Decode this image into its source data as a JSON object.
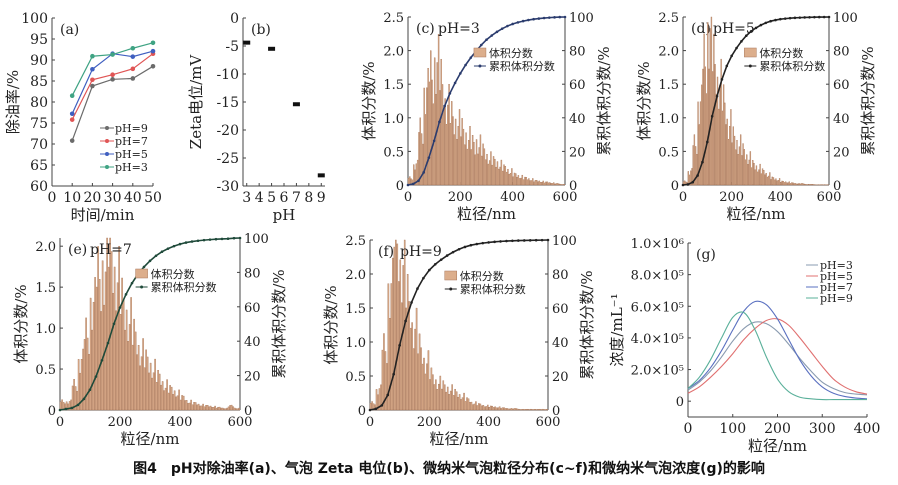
{
  "caption": "图4　pH对除油率(a)、气泡 Zeta 电位(b)、微纳米气泡粒径分布(c~f)和微纳米气泡浓度(g)的影响",
  "chart_data": [
    {
      "id": "a",
      "type": "line",
      "panel_label": "(a)",
      "xlabel": "时间/min",
      "ylabel": "除油率/%",
      "x": [
        10,
        20,
        30,
        40,
        50
      ],
      "xlim": [
        0,
        50
      ],
      "xticks": [
        0,
        10,
        20,
        30,
        40,
        50
      ],
      "ylim": [
        60,
        100
      ],
      "yticks": [
        60,
        65,
        70,
        75,
        80,
        85,
        90,
        95,
        100
      ],
      "legend_position": "center-right",
      "series": [
        {
          "name": "pH=9",
          "color": "#6b6b6b",
          "values": [
            70.8,
            83.8,
            85.4,
            85.6,
            88.5
          ]
        },
        {
          "name": "pH=7",
          "color": "#e05555",
          "values": [
            75.8,
            85.3,
            86.5,
            87.9,
            91.5
          ]
        },
        {
          "name": "pH=5",
          "color": "#3f5fc0",
          "values": [
            77.2,
            87.8,
            91.5,
            90.8,
            92.1
          ]
        },
        {
          "name": "pH=3",
          "color": "#3fa383",
          "values": [
            81.5,
            90.9,
            91.3,
            92.8,
            94.1
          ]
        }
      ]
    },
    {
      "id": "b",
      "type": "scatter",
      "panel_label": "(b)",
      "xlabel": "pH",
      "ylabel": "Zeta电位/mV",
      "x": [
        3,
        5,
        7,
        9
      ],
      "values": [
        -4.4,
        -5.5,
        -15.4,
        -28.1
      ],
      "xlim": [
        2.7,
        9.3
      ],
      "xticks": [
        3,
        4,
        5,
        6,
        7,
        8,
        9
      ],
      "ylim": [
        -30,
        0
      ],
      "yticks": [
        0,
        -5,
        -10,
        -15,
        -20,
        -25,
        -30
      ]
    },
    {
      "id": "c",
      "type": "bar",
      "panel_label": "(c)",
      "title": "pH=3",
      "xlabel": "粒径/nm",
      "ylabel": "体积分数/%",
      "y2label": "累积体积分数/%",
      "bin_width": 20,
      "xlim": [
        0,
        600
      ],
      "xticks": [
        0,
        200,
        400,
        600
      ],
      "ylim": [
        0,
        2.5
      ],
      "yticks": [
        0,
        0.5,
        1.0,
        1.5,
        2.0,
        2.5
      ],
      "y2lim": [
        0,
        100
      ],
      "y2ticks": [
        0,
        20,
        40,
        60,
        80,
        100
      ],
      "legend": [
        "体积分数",
        "累积体积分数"
      ],
      "cum_color": "#2b3c6e",
      "values": [
        0.1,
        0.3,
        0.8,
        1.4,
        1.6,
        1.8,
        1.5,
        1.2,
        1.0,
        0.9,
        0.8,
        0.7,
        0.6,
        0.6,
        0.5,
        0.4,
        0.35,
        0.3,
        0.25,
        0.2,
        0.15,
        0.12,
        0.1,
        0.08,
        0.06,
        0.05,
        0.04,
        0.03,
        0.02,
        0.01
      ]
    },
    {
      "id": "d",
      "type": "bar",
      "panel_label": "(d)",
      "title": "pH=5",
      "xlabel": "粒径/nm",
      "ylabel": "体积分数/%",
      "y2label": "累积体积分数/%",
      "bin_width": 20,
      "xlim": [
        0,
        600
      ],
      "xticks": [
        0,
        200,
        400,
        600
      ],
      "ylim": [
        0,
        2.5
      ],
      "yticks": [
        0,
        0.5,
        1.0,
        1.5,
        2.0,
        2.5
      ],
      "y2lim": [
        0,
        100
      ],
      "y2ticks": [
        0,
        20,
        40,
        60,
        80,
        100
      ],
      "legend": [
        "体积分数",
        "累积体积分数"
      ],
      "cum_color": "#222222",
      "values": [
        0.05,
        0.2,
        0.6,
        1.2,
        1.8,
        2.3,
        1.8,
        1.5,
        1.2,
        0.9,
        0.7,
        0.6,
        0.5,
        0.4,
        0.3,
        0.25,
        0.2,
        0.15,
        0.1,
        0.08,
        0.05,
        0.04,
        0.03,
        0.02,
        0.02,
        0.01,
        0.01,
        0.005,
        0.005,
        0.005
      ]
    },
    {
      "id": "e",
      "type": "bar",
      "panel_label": "(e)",
      "title": "pH=7",
      "xlabel": "粒径/nm",
      "ylabel": "体积分数/%",
      "y2label": "累积体积分数/%",
      "bin_width": 20,
      "xlim": [
        0,
        600
      ],
      "xticks": [
        0,
        200,
        400,
        600
      ],
      "ylim": [
        0,
        2.1
      ],
      "yticks": [
        0,
        0.5,
        1.0,
        1.5,
        2.0
      ],
      "y2lim": [
        0,
        100
      ],
      "y2ticks": [
        0,
        20,
        40,
        60,
        80,
        100
      ],
      "legend": [
        "体积分数",
        "累积体积分数"
      ],
      "cum_color": "#1f4a3a",
      "values": [
        0.1,
        0.1,
        0.3,
        0.6,
        0.9,
        1.3,
        1.6,
        1.7,
        1.9,
        1.6,
        1.3,
        1.1,
        0.9,
        0.7,
        0.6,
        0.5,
        0.4,
        0.3,
        0.25,
        0.2,
        0.15,
        0.1,
        0.08,
        0.06,
        0.05,
        0.04,
        0.03,
        0.02,
        0.05,
        0.02
      ]
    },
    {
      "id": "f",
      "type": "bar",
      "panel_label": "(f)",
      "title": "pH=9",
      "xlabel": "粒径/nm",
      "ylabel": "体积分数/%",
      "y2label": "累积体积分数/%",
      "bin_width": 20,
      "xlim": [
        0,
        600
      ],
      "xticks": [
        0,
        200,
        400,
        600
      ],
      "ylim": [
        0,
        2.5
      ],
      "yticks": [
        0,
        0.5,
        1.0,
        1.5,
        2.0,
        2.5
      ],
      "y2lim": [
        0,
        100
      ],
      "y2ticks": [
        0,
        20,
        40,
        60,
        80,
        100
      ],
      "legend": [
        "体积分数",
        "累积体积分数"
      ],
      "cum_color": "#222222",
      "values": [
        0.1,
        0.3,
        0.9,
        1.8,
        2.5,
        2.1,
        1.6,
        1.2,
        0.9,
        0.7,
        0.5,
        0.4,
        0.35,
        0.3,
        0.25,
        0.2,
        0.15,
        0.1,
        0.08,
        0.06,
        0.05,
        0.04,
        0.03,
        0.02,
        0.02,
        0.01,
        0.01,
        0.01,
        0.01,
        0.01
      ]
    },
    {
      "id": "g",
      "type": "line",
      "panel_label": "(g)",
      "xlabel": "粒径/nm",
      "ylabel": "浓度/mL⁻¹",
      "x": [
        0,
        25,
        50,
        75,
        100,
        125,
        150,
        175,
        200,
        225,
        250,
        275,
        300,
        325,
        350,
        375,
        400
      ],
      "xlim": [
        0,
        400
      ],
      "xticks": [
        0,
        100,
        200,
        300,
        400
      ],
      "ylim": [
        -100000,
        1000000
      ],
      "yticks": [
        0,
        200000,
        400000,
        600000,
        800000,
        1000000
      ],
      "ytick_labels": [
        "0",
        "2.0×10⁵",
        "4.0×10⁵",
        "6.0×10⁵",
        "8.0×10⁵",
        "1.0×10⁶"
      ],
      "legend_position": "top-right",
      "series": [
        {
          "name": "pH=3",
          "color": "#8a9bb0",
          "values": [
            70000,
            120000,
            190000,
            280000,
            380000,
            460000,
            500000,
            490000,
            440000,
            360000,
            270000,
            190000,
            120000,
            80000,
            55000,
            45000,
            40000
          ]
        },
        {
          "name": "pH=5",
          "color": "#e07070",
          "values": [
            50000,
            90000,
            150000,
            220000,
            300000,
            390000,
            460000,
            510000,
            520000,
            480000,
            400000,
            310000,
            220000,
            140000,
            90000,
            60000,
            45000
          ]
        },
        {
          "name": "pH=7",
          "color": "#5a70c0",
          "values": [
            80000,
            130000,
            210000,
            320000,
            450000,
            570000,
            630000,
            610000,
            520000,
            390000,
            260000,
            160000,
            90000,
            50000,
            30000,
            20000,
            15000
          ]
        },
        {
          "name": "pH=9",
          "color": "#5ab09a",
          "values": [
            80000,
            150000,
            260000,
            400000,
            530000,
            560000,
            450000,
            280000,
            140000,
            60000,
            25000,
            15000,
            10000,
            10000,
            10000,
            10000,
            10000
          ]
        }
      ]
    }
  ]
}
